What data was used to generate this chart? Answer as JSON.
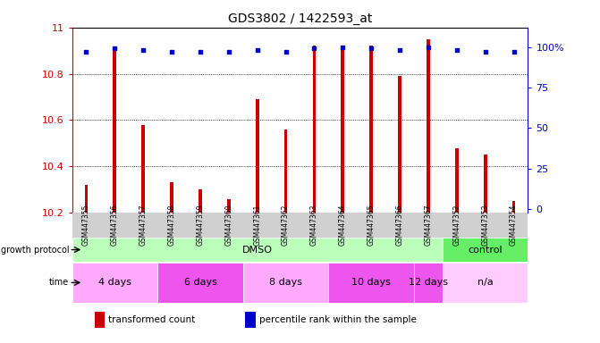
{
  "title": "GDS3802 / 1422593_at",
  "samples": [
    "GSM447355",
    "GSM447356",
    "GSM447357",
    "GSM447358",
    "GSM447359",
    "GSM447360",
    "GSM447361",
    "GSM447362",
    "GSM447363",
    "GSM447364",
    "GSM447365",
    "GSM447366",
    "GSM447367",
    "GSM447352",
    "GSM447353",
    "GSM447354"
  ],
  "red_values": [
    10.32,
    10.9,
    10.58,
    10.33,
    10.3,
    10.26,
    10.69,
    10.56,
    10.92,
    10.92,
    10.92,
    10.79,
    10.95,
    10.48,
    10.45,
    10.25
  ],
  "blue_values": [
    97,
    99,
    98,
    97,
    97,
    97,
    98,
    97,
    99,
    100,
    99,
    98,
    100,
    98,
    97,
    97
  ],
  "ymin": 10.2,
  "ymax": 11.0,
  "yticks_left": [
    10.2,
    10.4,
    10.6,
    10.8,
    11.0
  ],
  "ytick_labels_left": [
    "10.2",
    "10.4",
    "10.6",
    "10.8",
    "11"
  ],
  "yticks_right": [
    0,
    25,
    50,
    75,
    100
  ],
  "ytick_labels_right": [
    "0",
    "25",
    "50",
    "75",
    "100%"
  ],
  "bar_color": "#cc0000",
  "dot_color": "#0000cc",
  "bg_color": "#ffffff",
  "xtick_bg_color": "#d0d0d0",
  "protocol_groups": [
    {
      "label": "DMSO",
      "start": 0,
      "end": 12,
      "color": "#bbffbb"
    },
    {
      "label": "control",
      "start": 13,
      "end": 15,
      "color": "#66ee66"
    }
  ],
  "time_groups": [
    {
      "label": "4 days",
      "start": 0,
      "end": 2,
      "color": "#ffaaff"
    },
    {
      "label": "6 days",
      "start": 3,
      "end": 5,
      "color": "#ee55ee"
    },
    {
      "label": "8 days",
      "start": 6,
      "end": 8,
      "color": "#ffaaff"
    },
    {
      "label": "10 days",
      "start": 9,
      "end": 11,
      "color": "#ee55ee"
    },
    {
      "label": "12 days",
      "start": 12,
      "end": 12,
      "color": "#ee55ee"
    },
    {
      "label": "n/a",
      "start": 13,
      "end": 15,
      "color": "#ffccff"
    }
  ],
  "legend_items": [
    {
      "color": "#cc0000",
      "label": "transformed count"
    },
    {
      "color": "#0000cc",
      "label": "percentile rank within the sample"
    }
  ]
}
